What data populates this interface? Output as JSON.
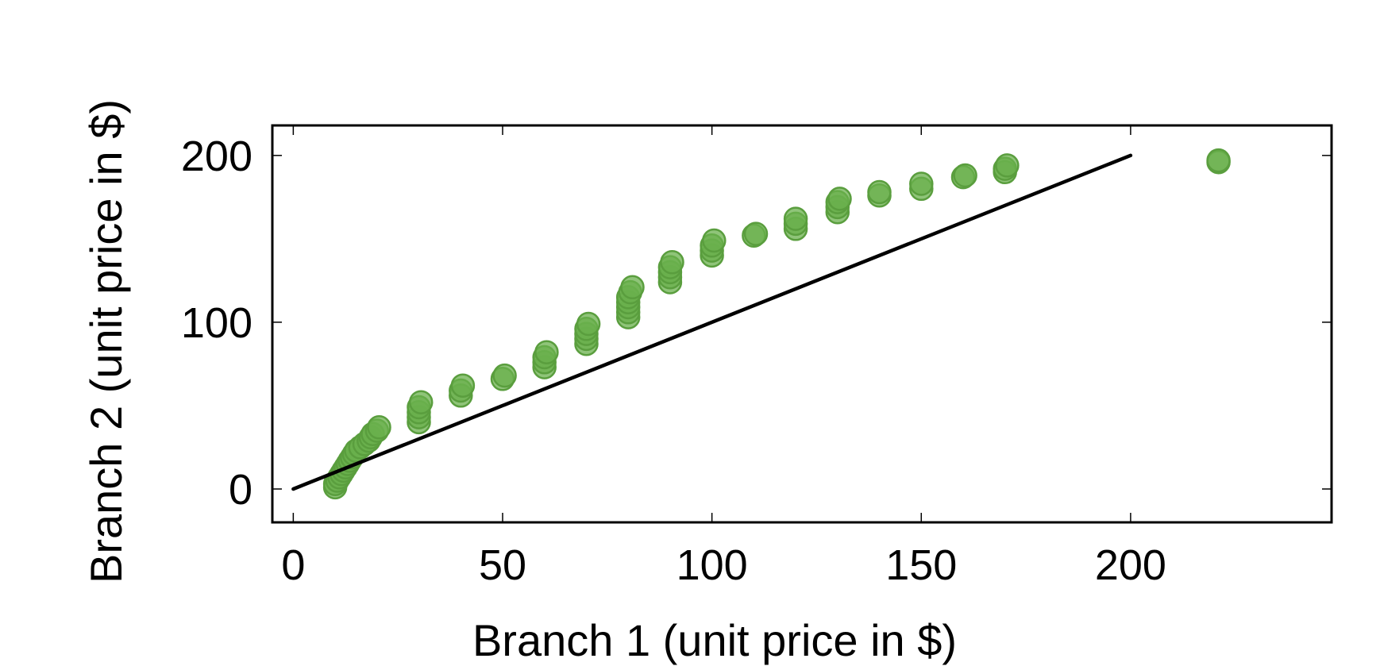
{
  "chart_data": {
    "type": "scatter",
    "title": "",
    "xlabel": "Branch 1 (unit price in $)",
    "ylabel": "Branch 2 (unit price in $)",
    "xlim": [
      -5,
      248
    ],
    "ylim": [
      -20,
      218
    ],
    "xticks": [
      0,
      50,
      100,
      150,
      200
    ],
    "yticks": [
      0,
      100,
      200
    ],
    "xtick_labels": [
      "0",
      "50",
      "100",
      "150",
      "200"
    ],
    "ytick_labels": [
      "0",
      "100",
      "200"
    ],
    "grid": false,
    "legend": "none",
    "marker_color": "#6ab04c",
    "marker_edge_color": "#5a9e3e",
    "line_color": "#000000",
    "reference_line": {
      "x": [
        0,
        200
      ],
      "y": [
        0,
        200
      ]
    },
    "points": [
      [
        10,
        1
      ],
      [
        10,
        3
      ],
      [
        10.5,
        5
      ],
      [
        11,
        7
      ],
      [
        11.5,
        9
      ],
      [
        12,
        11
      ],
      [
        12.5,
        13
      ],
      [
        13,
        15
      ],
      [
        13.5,
        17
      ],
      [
        14,
        19
      ],
      [
        14.5,
        21
      ],
      [
        15,
        23
      ],
      [
        16,
        25
      ],
      [
        17,
        27
      ],
      [
        18,
        29
      ],
      [
        18.5,
        31
      ],
      [
        19,
        33
      ],
      [
        20,
        35
      ],
      [
        20.5,
        37
      ],
      [
        30,
        40
      ],
      [
        30,
        43
      ],
      [
        30,
        46
      ],
      [
        30,
        49
      ],
      [
        30.5,
        52
      ],
      [
        40,
        56
      ],
      [
        40,
        59
      ],
      [
        40.5,
        62
      ],
      [
        50,
        66
      ],
      [
        50.5,
        68
      ],
      [
        60,
        73
      ],
      [
        60,
        76
      ],
      [
        60,
        79
      ],
      [
        60.5,
        82
      ],
      [
        70,
        87
      ],
      [
        70,
        90
      ],
      [
        70,
        93
      ],
      [
        70,
        96
      ],
      [
        70.5,
        99
      ],
      [
        80,
        103
      ],
      [
        80,
        106
      ],
      [
        80,
        109
      ],
      [
        80,
        112
      ],
      [
        80,
        115
      ],
      [
        80.5,
        118
      ],
      [
        81,
        121
      ],
      [
        90,
        124
      ],
      [
        90,
        127
      ],
      [
        90,
        130
      ],
      [
        90,
        133
      ],
      [
        90.5,
        136
      ],
      [
        100,
        140
      ],
      [
        100,
        143
      ],
      [
        100,
        146
      ],
      [
        100.5,
        149
      ],
      [
        110,
        152
      ],
      [
        110.5,
        153
      ],
      [
        120,
        156
      ],
      [
        120,
        159
      ],
      [
        120,
        162
      ],
      [
        130,
        166
      ],
      [
        130,
        169
      ],
      [
        130,
        172
      ],
      [
        130.5,
        174
      ],
      [
        140,
        176
      ],
      [
        140,
        178
      ],
      [
        150,
        180
      ],
      [
        150,
        183
      ],
      [
        160,
        187
      ],
      [
        160.5,
        188
      ],
      [
        170,
        190
      ],
      [
        170,
        192
      ],
      [
        170.5,
        194
      ],
      [
        221,
        196
      ],
      [
        221,
        197
      ]
    ]
  }
}
